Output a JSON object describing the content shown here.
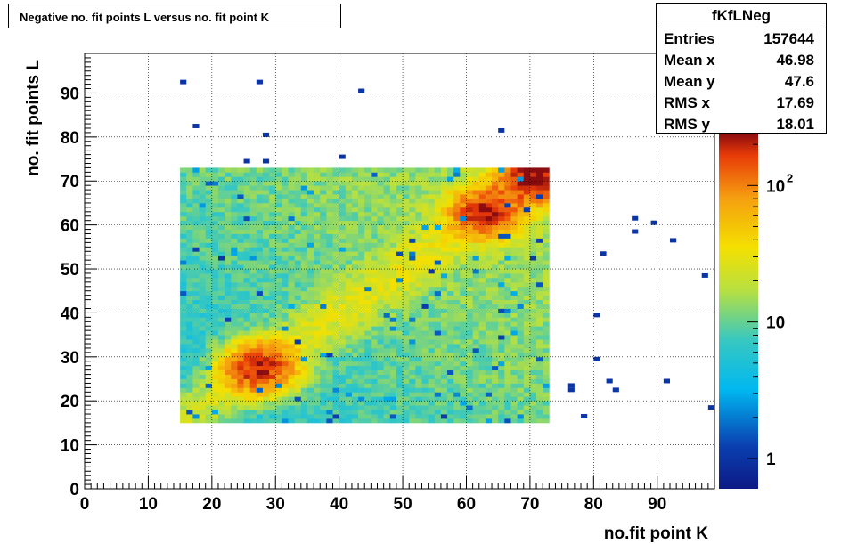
{
  "chart_data": {
    "type": "heatmap",
    "title": "Negative no. fit points L versus no. fit point K",
    "xlabel": "no.fit point K",
    "ylabel": "no. fit points  L",
    "xlim": [
      0,
      99
    ],
    "ylim": [
      0,
      99
    ],
    "x_ticks": [
      "0",
      "10",
      "20",
      "30",
      "40",
      "50",
      "60",
      "70",
      "80",
      "90"
    ],
    "y_ticks": [
      "0",
      "10",
      "20",
      "30",
      "40",
      "50",
      "60",
      "70",
      "80",
      "90"
    ],
    "z_scale": "log",
    "zlim": [
      0.6,
      240
    ],
    "z_ticks": [
      "1",
      "10",
      "10^2"
    ],
    "grid": true,
    "hotspots": [
      {
        "x": 27.5,
        "y": 27.5,
        "peak": 180
      },
      {
        "x": 63,
        "y": 63,
        "peak": 170
      },
      {
        "x": 71,
        "y": 71,
        "peak": 240
      }
    ],
    "dense_region": {
      "x": [
        15,
        72.5
      ],
      "y": [
        15,
        72.5
      ]
    },
    "outlier_cells": [
      {
        "x": 15,
        "y": 92
      },
      {
        "x": 27,
        "y": 92
      },
      {
        "x": 43,
        "y": 90
      },
      {
        "x": 17,
        "y": 82
      },
      {
        "x": 28,
        "y": 80
      },
      {
        "x": 65,
        "y": 81
      },
      {
        "x": 40,
        "y": 75
      },
      {
        "x": 25,
        "y": 74
      },
      {
        "x": 28,
        "y": 74
      },
      {
        "x": 86,
        "y": 61
      },
      {
        "x": 89,
        "y": 60
      },
      {
        "x": 86,
        "y": 58
      },
      {
        "x": 92,
        "y": 56
      },
      {
        "x": 81,
        "y": 53
      },
      {
        "x": 97,
        "y": 48
      },
      {
        "x": 80,
        "y": 39
      },
      {
        "x": 80,
        "y": 29
      },
      {
        "x": 82,
        "y": 24
      },
      {
        "x": 91,
        "y": 24
      },
      {
        "x": 76,
        "y": 23
      },
      {
        "x": 76,
        "y": 22
      },
      {
        "x": 83,
        "y": 22
      },
      {
        "x": 98,
        "y": 18
      },
      {
        "x": 78,
        "y": 16
      }
    ]
  },
  "stats": {
    "name": "fKfLNeg",
    "rows": [
      {
        "label": "Entries",
        "value": "157644"
      },
      {
        "label": "Mean x",
        "value": "46.98"
      },
      {
        "label": "Mean y",
        "value": "47.6"
      },
      {
        "label": "RMS x",
        "value": "17.69"
      },
      {
        "label": "RMS y",
        "value": "18.01"
      }
    ]
  }
}
